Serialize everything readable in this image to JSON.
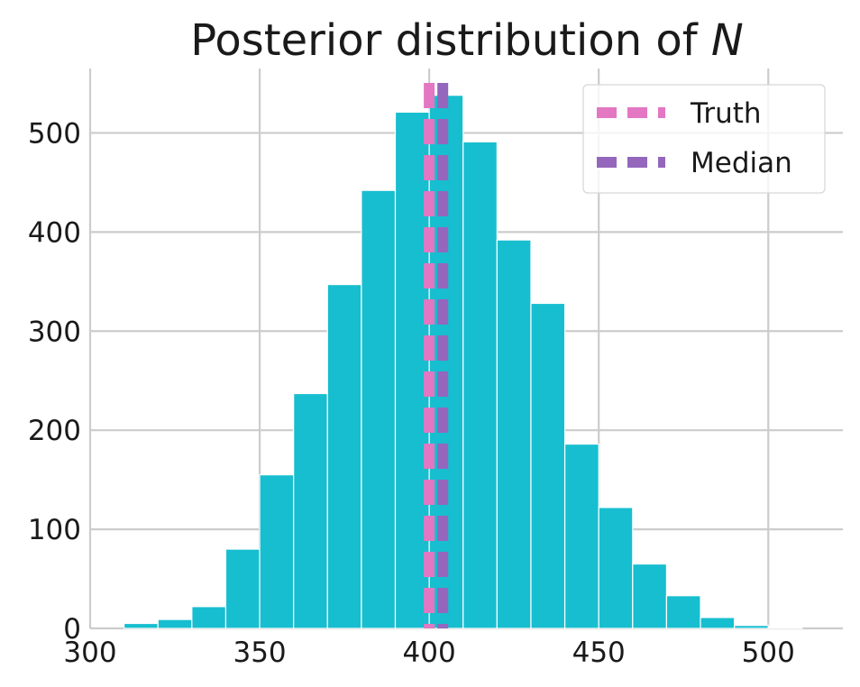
{
  "chart_data": {
    "type": "bar",
    "title": "Posterior distribution of ",
    "title_var": "N",
    "xlabel": "",
    "ylabel": "",
    "xlim": [
      300,
      522
    ],
    "ylim": [
      0,
      565
    ],
    "grid": true,
    "x_ticks": [
      300,
      350,
      400,
      450,
      500
    ],
    "y_ticks": [
      0,
      100,
      200,
      300,
      400,
      500
    ],
    "bins": [
      {
        "x0": 310,
        "x1": 320,
        "count": 5
      },
      {
        "x0": 320,
        "x1": 330,
        "count": 9
      },
      {
        "x0": 330,
        "x1": 340,
        "count": 22
      },
      {
        "x0": 340,
        "x1": 350,
        "count": 80
      },
      {
        "x0": 350,
        "x1": 360,
        "count": 155
      },
      {
        "x0": 360,
        "x1": 370,
        "count": 237
      },
      {
        "x0": 370,
        "x1": 380,
        "count": 347
      },
      {
        "x0": 380,
        "x1": 390,
        "count": 442
      },
      {
        "x0": 390,
        "x1": 400,
        "count": 521
      },
      {
        "x0": 400,
        "x1": 410,
        "count": 538
      },
      {
        "x0": 410,
        "x1": 420,
        "count": 491
      },
      {
        "x0": 420,
        "x1": 430,
        "count": 392
      },
      {
        "x0": 430,
        "x1": 440,
        "count": 328
      },
      {
        "x0": 440,
        "x1": 450,
        "count": 186
      },
      {
        "x0": 450,
        "x1": 460,
        "count": 122
      },
      {
        "x0": 460,
        "x1": 470,
        "count": 65
      },
      {
        "x0": 470,
        "x1": 480,
        "count": 33
      },
      {
        "x0": 480,
        "x1": 490,
        "count": 11
      },
      {
        "x0": 490,
        "x1": 500,
        "count": 3
      },
      {
        "x0": 500,
        "x1": 510,
        "count": 1
      }
    ],
    "vlines": [
      {
        "name": "Truth",
        "x": 400,
        "color": "#e377c2"
      },
      {
        "name": "Median",
        "x": 404,
        "color": "#9467bd"
      }
    ],
    "legend": {
      "location": "upper right",
      "entries": [
        "Truth",
        "Median"
      ]
    },
    "bar_color": "#17becf",
    "grid_color": "#cccccc"
  }
}
